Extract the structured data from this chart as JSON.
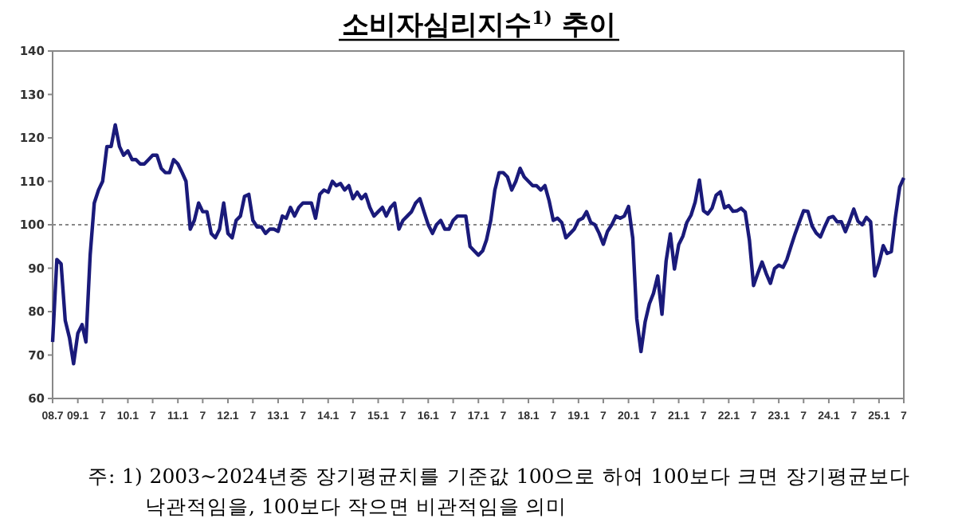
{
  "chart_data": {
    "type": "line",
    "title": "소비자심리지수$^{1)}$ 추이",
    "annotations": [
      "주: 1) 2003~2024년중 장기평균치를 기준값 100으로 하여 100보다 크면 장기평균보다 낙관적임을, 100보다 작으면 비관적임을 의미"
    ],
    "x": [
      "2008-07",
      "2008-08",
      "2008-09",
      "2008-10",
      "2008-11",
      "2008-12",
      "2009-01",
      "2009-02",
      "2009-03",
      "2009-04",
      "2009-05",
      "2009-06",
      "2009-07",
      "2009-08",
      "2009-09",
      "2009-10",
      "2009-11",
      "2009-12",
      "2010-01",
      "2010-02",
      "2010-03",
      "2010-04",
      "2010-05",
      "2010-06",
      "2010-07",
      "2010-08",
      "2010-09",
      "2010-10",
      "2010-11",
      "2010-12",
      "2011-01",
      "2011-02",
      "2011-03",
      "2011-04",
      "2011-05",
      "2011-06",
      "2011-07",
      "2011-08",
      "2011-09",
      "2011-10",
      "2011-11",
      "2011-12",
      "2012-01",
      "2012-02",
      "2012-03",
      "2012-04",
      "2012-05",
      "2012-06",
      "2012-07",
      "2012-08",
      "2012-09",
      "2012-10",
      "2012-11",
      "2012-12",
      "2013-01",
      "2013-02",
      "2013-03",
      "2013-04",
      "2013-05",
      "2013-06",
      "2013-07",
      "2013-08",
      "2013-09",
      "2013-10",
      "2013-11",
      "2013-12",
      "2014-01",
      "2014-02",
      "2014-03",
      "2014-04",
      "2014-05",
      "2014-06",
      "2014-07",
      "2014-08",
      "2014-09",
      "2014-10",
      "2014-11",
      "2014-12",
      "2015-01",
      "2015-02",
      "2015-03",
      "2015-04",
      "2015-05",
      "2015-06",
      "2015-07",
      "2015-08",
      "2015-09",
      "2015-10",
      "2015-11",
      "2015-12",
      "2016-01",
      "2016-02",
      "2016-03",
      "2016-04",
      "2016-05",
      "2016-06",
      "2016-07",
      "2016-08",
      "2016-09",
      "2016-10",
      "2016-11",
      "2016-12",
      "2017-01",
      "2017-02",
      "2017-03",
      "2017-04",
      "2017-05",
      "2017-06",
      "2017-07",
      "2017-08",
      "2017-09",
      "2017-10",
      "2017-11",
      "2017-12",
      "2018-01",
      "2018-02",
      "2018-03",
      "2018-04",
      "2018-05",
      "2018-06",
      "2018-07",
      "2018-08",
      "2018-09",
      "2018-10",
      "2018-11",
      "2018-12",
      "2019-01",
      "2019-02",
      "2019-03",
      "2019-04",
      "2019-05",
      "2019-06",
      "2019-07",
      "2019-08",
      "2019-09",
      "2019-10",
      "2019-11",
      "2019-12",
      "2020-01",
      "2020-02",
      "2020-03",
      "2020-04",
      "2020-05",
      "2020-06",
      "2020-07",
      "2020-08",
      "2020-09",
      "2020-10",
      "2020-11",
      "2020-12",
      "2021-01",
      "2021-02",
      "2021-03",
      "2021-04",
      "2021-05",
      "2021-06",
      "2021-07",
      "2021-08",
      "2021-09",
      "2021-10",
      "2021-11",
      "2021-12",
      "2022-01",
      "2022-02",
      "2022-03",
      "2022-04",
      "2022-05",
      "2022-06",
      "2022-07",
      "2022-08",
      "2022-09",
      "2022-10",
      "2022-11",
      "2022-12",
      "2023-01",
      "2023-02",
      "2023-03",
      "2023-04",
      "2023-05",
      "2023-06",
      "2023-07",
      "2023-08",
      "2023-09",
      "2023-10",
      "2023-11",
      "2023-12",
      "2024-01",
      "2024-02",
      "2024-03",
      "2024-04",
      "2024-05",
      "2024-06",
      "2024-07",
      "2024-08",
      "2024-09",
      "2024-10",
      "2024-11",
      "2024-12",
      "2025-01",
      "2025-02",
      "2025-03",
      "2025-04",
      "2025-05",
      "2025-06",
      "2025-07"
    ],
    "series": [
      {
        "color": "#1a1a7a",
        "values": [
          73,
          92,
          91,
          78,
          74,
          68,
          75,
          77,
          73,
          93,
          105,
          108,
          110,
          118,
          118,
          123,
          118,
          116,
          117,
          115,
          115,
          114,
          114,
          115,
          116,
          116,
          113,
          112,
          112,
          115,
          114,
          112,
          110,
          99,
          101,
          105,
          103,
          103,
          98,
          97,
          99,
          105,
          98,
          97,
          101,
          102,
          106.5,
          107,
          101,
          99.5,
          99.5,
          98,
          99,
          99,
          98.5,
          102,
          101.5,
          104,
          102,
          104,
          105,
          105,
          105,
          101.5,
          107,
          108,
          107.5,
          110,
          109,
          109.5,
          108,
          109,
          106,
          107.5,
          106,
          107,
          104,
          102,
          103,
          104,
          102,
          104,
          105,
          99,
          101,
          102,
          103,
          105,
          106,
          103,
          100,
          98,
          100,
          101,
          99,
          99,
          101,
          102,
          102,
          102,
          95,
          94,
          93,
          94,
          96.5,
          101,
          108,
          112,
          112,
          111,
          108,
          110,
          113,
          111,
          110,
          109,
          109,
          108,
          109,
          105.5,
          101,
          101.5,
          100.5,
          97,
          98,
          99,
          101,
          101.5,
          103,
          100.5,
          100,
          98,
          95.5,
          98.5,
          100,
          102,
          101.5,
          102,
          104.2,
          96.9,
          78.4,
          70.8,
          77.6,
          81.8,
          84.2,
          88.2,
          79.4,
          91.6,
          97.9,
          89.8,
          95.4,
          97.4,
          100.5,
          102.2,
          105.2,
          110.3,
          103.2,
          102.5,
          103.8,
          106.8,
          107.6,
          103.9,
          104.4,
          103.1,
          103.2,
          103.8,
          102.9,
          96.4,
          86,
          88.8,
          91.4,
          88.8,
          86.5,
          89.9,
          90.7,
          90.2,
          92,
          95.1,
          98,
          100.7,
          103.2,
          103.1,
          99.7,
          98.1,
          97.2,
          99.5,
          101.6,
          101.9,
          100.7,
          100.7,
          98.4,
          100.9,
          103.6,
          100.8,
          100,
          101.7,
          100.7,
          88.2,
          91.2,
          95.2,
          93.4,
          93.8,
          101.8,
          108.7,
          110.8
        ]
      }
    ],
    "xlim": [
      "2008-07",
      "2025-07"
    ],
    "xticks": [
      {
        "value": "2008-07",
        "label": "08.7"
      },
      {
        "value": "2009-01",
        "label": "09.1"
      },
      {
        "value": "2009-07",
        "label": "7"
      },
      {
        "value": "2010-01",
        "label": "10.1"
      },
      {
        "value": "2010-07",
        "label": "7"
      },
      {
        "value": "2011-01",
        "label": "11.1"
      },
      {
        "value": "2011-07",
        "label": "7"
      },
      {
        "value": "2012-01",
        "label": "12.1"
      },
      {
        "value": "2012-07",
        "label": "7"
      },
      {
        "value": "2013-01",
        "label": "13.1"
      },
      {
        "value": "2013-07",
        "label": "7"
      },
      {
        "value": "2014-01",
        "label": "14.1"
      },
      {
        "value": "2014-07",
        "label": "7"
      },
      {
        "value": "2015-01",
        "label": "15.1"
      },
      {
        "value": "2015-07",
        "label": "7"
      },
      {
        "value": "2016-01",
        "label": "16.1"
      },
      {
        "value": "2016-07",
        "label": "7"
      },
      {
        "value": "2017-01",
        "label": "17.1"
      },
      {
        "value": "2017-07",
        "label": "7"
      },
      {
        "value": "2018-01",
        "label": "18.1"
      },
      {
        "value": "2018-07",
        "label": "7"
      },
      {
        "value": "2019-01",
        "label": "19.1"
      },
      {
        "value": "2019-07",
        "label": "7"
      },
      {
        "value": "2020-01",
        "label": "20.1"
      },
      {
        "value": "2020-07",
        "label": "7"
      },
      {
        "value": "2021-01",
        "label": "21.1"
      },
      {
        "value": "2021-07",
        "label": "7"
      },
      {
        "value": "2022-01",
        "label": "22.1"
      },
      {
        "value": "2022-07",
        "label": "7"
      },
      {
        "value": "2023-01",
        "label": "23.1"
      },
      {
        "value": "2023-07",
        "label": "7"
      },
      {
        "value": "2024-01",
        "label": "24.1"
      },
      {
        "value": "2024-07",
        "label": "7"
      },
      {
        "value": "2025-01",
        "label": "25.1"
      },
      {
        "value": "2025-07",
        "label": "7"
      }
    ],
    "ylim": [
      60,
      140
    ],
    "yticks": [
      60,
      70,
      80,
      90,
      100,
      110,
      120,
      130,
      140
    ],
    "ref_lines": [
      {
        "axis": "y",
        "value": 100,
        "color": "#888888",
        "line_style": "dotted"
      }
    ],
    "grid": false,
    "marker": "none",
    "line_style": "solid"
  }
}
